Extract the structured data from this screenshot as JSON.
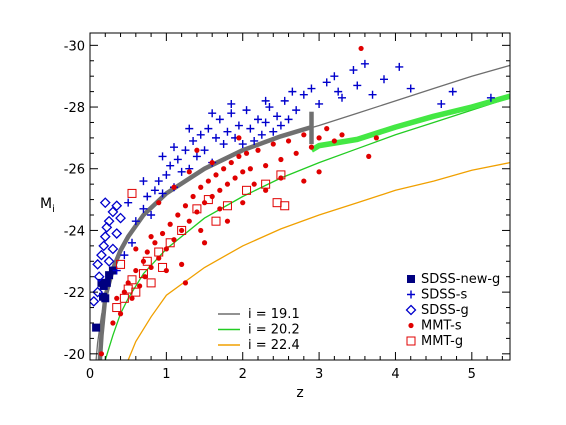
{
  "chart_data": {
    "type": "scatter",
    "title": "",
    "xlabel": "z",
    "ylabel_main": "M",
    "ylabel_sub": "i",
    "xlim": [
      0,
      5.5
    ],
    "ylim": [
      -19.8,
      -30.4
    ],
    "y_inverted": true,
    "x_ticks": [
      0,
      1,
      2,
      3,
      4,
      5
    ],
    "x_tick_labels": [
      "0",
      "1",
      "2",
      "3",
      "4",
      "5"
    ],
    "y_ticks": [
      -20,
      -22,
      -24,
      -26,
      -28,
      -30
    ],
    "y_tick_labels": [
      "-20",
      "-22",
      "-24",
      "-26",
      "-28",
      "-30"
    ],
    "grid": false,
    "colors": {
      "line_19_1": "#6e6e6e",
      "line_20_2": "#22cc22",
      "line_22_4": "#f0a000",
      "selection_gray": "#707070",
      "selection_green": "#44e844",
      "sdss_blue": "#0000cc",
      "sdss_new": "#000080",
      "mmt_red": "#e00000"
    },
    "line_legend": [
      {
        "label": "i = 19.1",
        "color": "#6e6e6e"
      },
      {
        "label": "i = 20.2",
        "color": "#22cc22"
      },
      {
        "label": "i = 22.4",
        "color": "#f0a000"
      }
    ],
    "marker_legend": [
      {
        "label": "SDSS-new-g",
        "marker": "filled-square",
        "color": "#000080"
      },
      {
        "label": "SDSS-s",
        "marker": "plus",
        "color": "#0000cc"
      },
      {
        "label": "SDSS-g",
        "marker": "open-diamond",
        "color": "#0000cc"
      },
      {
        "label": "MMT-s",
        "marker": "filled-circle",
        "color": "#e00000"
      },
      {
        "label": "MMT-g",
        "marker": "open-square",
        "color": "#e00000"
      }
    ],
    "curves": [
      {
        "label": "i = 19.1",
        "color": "#6e6e6e",
        "points": [
          [
            0.08,
            -19.8
          ],
          [
            0.1,
            -20.35
          ],
          [
            0.15,
            -21.25
          ],
          [
            0.2,
            -21.85
          ],
          [
            0.3,
            -22.75
          ],
          [
            0.4,
            -23.35
          ],
          [
            0.5,
            -23.8
          ],
          [
            0.7,
            -24.5
          ],
          [
            1.0,
            -25.2
          ],
          [
            1.5,
            -26.0
          ],
          [
            2.0,
            -26.6
          ],
          [
            2.5,
            -27.05
          ],
          [
            3.0,
            -27.4
          ],
          [
            3.5,
            -27.8
          ],
          [
            4.0,
            -28.2
          ],
          [
            4.5,
            -28.6
          ],
          [
            5.0,
            -29.0
          ],
          [
            5.5,
            -29.35
          ]
        ]
      },
      {
        "label": "i = 20.2",
        "color": "#22cc22",
        "points": [
          [
            0.2,
            -19.8
          ],
          [
            0.3,
            -20.6
          ],
          [
            0.4,
            -21.3
          ],
          [
            0.5,
            -21.8
          ],
          [
            0.7,
            -22.6
          ],
          [
            1.0,
            -23.4
          ],
          [
            1.5,
            -24.4
          ],
          [
            2.0,
            -25.1
          ],
          [
            2.5,
            -25.7
          ],
          [
            3.0,
            -26.2
          ],
          [
            3.5,
            -26.65
          ],
          [
            4.0,
            -27.1
          ],
          [
            4.5,
            -27.5
          ],
          [
            5.0,
            -27.9
          ],
          [
            5.5,
            -28.3
          ]
        ]
      },
      {
        "label": "i = 22.4",
        "color": "#f0a000",
        "points": [
          [
            0.5,
            -19.8
          ],
          [
            0.6,
            -20.4
          ],
          [
            0.8,
            -21.2
          ],
          [
            1.0,
            -21.9
          ],
          [
            1.5,
            -22.8
          ],
          [
            2.0,
            -23.5
          ],
          [
            2.5,
            -24.05
          ],
          [
            3.0,
            -24.5
          ],
          [
            3.5,
            -24.9
          ],
          [
            4.0,
            -25.3
          ],
          [
            4.5,
            -25.6
          ],
          [
            5.0,
            -25.95
          ],
          [
            5.5,
            -26.2
          ]
        ]
      }
    ],
    "selection_limit": {
      "gray_segment": [
        [
          0.13,
          -19.8
        ],
        [
          0.15,
          -20.6
        ],
        [
          0.2,
          -21.85
        ],
        [
          0.3,
          -22.75
        ],
        [
          0.4,
          -23.35
        ],
        [
          0.5,
          -23.8
        ],
        [
          0.7,
          -24.5
        ],
        [
          1.0,
          -25.2
        ],
        [
          1.5,
          -26.0
        ],
        [
          2.0,
          -26.6
        ],
        [
          2.5,
          -27.05
        ],
        [
          2.9,
          -27.35
        ]
      ],
      "gray_vertical": [
        [
          2.9,
          -27.85
        ],
        [
          2.9,
          -26.8
        ]
      ],
      "green_segment": [
        [
          2.9,
          -26.6
        ],
        [
          3.0,
          -26.75
        ],
        [
          3.5,
          -26.95
        ],
        [
          4.0,
          -27.35
        ],
        [
          4.5,
          -27.7
        ],
        [
          5.0,
          -28.0
        ],
        [
          5.5,
          -28.35
        ]
      ]
    },
    "series": [
      {
        "name": "SDSS-new-g",
        "marker": "filled-square",
        "color": "#000080",
        "points": [
          [
            0.08,
            -20.85
          ],
          [
            0.15,
            -22.3
          ],
          [
            0.18,
            -22.2
          ],
          [
            0.22,
            -22.3
          ],
          [
            0.25,
            -22.55
          ],
          [
            0.2,
            -21.8
          ],
          [
            0.17,
            -21.85
          ],
          [
            0.3,
            -22.7
          ]
        ]
      },
      {
        "name": "SDSS-s",
        "marker": "plus",
        "color": "#0000cc",
        "points": [
          [
            0.35,
            -22.7
          ],
          [
            0.45,
            -23.2
          ],
          [
            0.55,
            -23.6
          ],
          [
            0.6,
            -24.3
          ],
          [
            0.7,
            -24.7
          ],
          [
            0.75,
            -25.1
          ],
          [
            0.8,
            -24.5
          ],
          [
            0.85,
            -25.3
          ],
          [
            0.9,
            -25.6
          ],
          [
            0.95,
            -25.2
          ],
          [
            1.0,
            -25.8
          ],
          [
            1.05,
            -26.1
          ],
          [
            1.1,
            -25.4
          ],
          [
            1.15,
            -26.3
          ],
          [
            1.2,
            -25.9
          ],
          [
            1.25,
            -26.6
          ],
          [
            1.3,
            -26.0
          ],
          [
            1.35,
            -26.9
          ],
          [
            1.4,
            -26.4
          ],
          [
            1.45,
            -27.1
          ],
          [
            1.5,
            -26.6
          ],
          [
            1.55,
            -27.3
          ],
          [
            1.6,
            -26.2
          ],
          [
            1.65,
            -27.0
          ],
          [
            1.7,
            -27.6
          ],
          [
            1.75,
            -26.8
          ],
          [
            1.8,
            -27.2
          ],
          [
            1.85,
            -27.8
          ],
          [
            1.9,
            -27.0
          ],
          [
            1.95,
            -27.4
          ],
          [
            2.0,
            -26.8
          ],
          [
            2.05,
            -27.9
          ],
          [
            2.1,
            -27.3
          ],
          [
            2.15,
            -26.9
          ],
          [
            2.2,
            -27.6
          ],
          [
            2.25,
            -27.1
          ],
          [
            2.3,
            -27.5
          ],
          [
            2.35,
            -28.0
          ],
          [
            2.4,
            -27.2
          ],
          [
            2.45,
            -27.7
          ],
          [
            2.5,
            -27.4
          ],
          [
            2.55,
            -28.2
          ],
          [
            2.6,
            -27.6
          ],
          [
            2.7,
            -27.9
          ],
          [
            2.8,
            -28.4
          ],
          [
            2.9,
            -28.6
          ],
          [
            3.0,
            -28.1
          ],
          [
            3.1,
            -28.8
          ],
          [
            3.2,
            -29.0
          ],
          [
            3.25,
            -28.5
          ],
          [
            3.3,
            -28.3
          ],
          [
            3.45,
            -29.2
          ],
          [
            3.5,
            -28.7
          ],
          [
            3.6,
            -29.4
          ],
          [
            3.7,
            -28.4
          ],
          [
            3.85,
            -28.9
          ],
          [
            4.05,
            -29.3
          ],
          [
            4.2,
            -28.6
          ],
          [
            4.6,
            -28.1
          ],
          [
            4.75,
            -28.5
          ],
          [
            5.25,
            -28.3
          ],
          [
            1.6,
            -27.8
          ],
          [
            1.3,
            -27.3
          ],
          [
            1.1,
            -26.7
          ],
          [
            0.95,
            -26.4
          ],
          [
            0.7,
            -25.6
          ],
          [
            0.5,
            -24.9
          ],
          [
            1.85,
            -28.1
          ],
          [
            2.3,
            -28.2
          ],
          [
            2.65,
            -28.5
          ]
        ]
      },
      {
        "name": "SDSS-g",
        "marker": "open-diamond",
        "color": "#0000cc",
        "points": [
          [
            0.05,
            -21.7
          ],
          [
            0.1,
            -22.0
          ],
          [
            0.12,
            -22.5
          ],
          [
            0.1,
            -22.9
          ],
          [
            0.15,
            -23.2
          ],
          [
            0.18,
            -23.5
          ],
          [
            0.2,
            -23.8
          ],
          [
            0.22,
            -24.1
          ],
          [
            0.25,
            -24.3
          ],
          [
            0.3,
            -24.6
          ],
          [
            0.25,
            -23.0
          ],
          [
            0.3,
            -23.4
          ],
          [
            0.35,
            -23.9
          ],
          [
            0.4,
            -24.4
          ],
          [
            0.2,
            -24.9
          ],
          [
            0.35,
            -24.8
          ]
        ]
      },
      {
        "name": "MMT-s",
        "marker": "filled-circle",
        "color": "#e00000",
        "points": [
          [
            0.15,
            -20.0
          ],
          [
            0.3,
            -21.0
          ],
          [
            0.35,
            -21.8
          ],
          [
            0.4,
            -21.3
          ],
          [
            0.45,
            -22.0
          ],
          [
            0.5,
            -22.3
          ],
          [
            0.55,
            -21.8
          ],
          [
            0.6,
            -22.7
          ],
          [
            0.65,
            -22.2
          ],
          [
            0.7,
            -23.0
          ],
          [
            0.72,
            -22.5
          ],
          [
            0.75,
            -23.3
          ],
          [
            0.8,
            -22.8
          ],
          [
            0.85,
            -23.6
          ],
          [
            0.9,
            -23.1
          ],
          [
            0.95,
            -23.9
          ],
          [
            1.0,
            -23.4
          ],
          [
            1.05,
            -24.2
          ],
          [
            1.1,
            -23.7
          ],
          [
            1.15,
            -24.5
          ],
          [
            1.2,
            -24.0
          ],
          [
            1.25,
            -24.8
          ],
          [
            1.3,
            -24.3
          ],
          [
            1.35,
            -25.1
          ],
          [
            1.4,
            -24.6
          ],
          [
            1.45,
            -25.4
          ],
          [
            1.5,
            -24.9
          ],
          [
            1.55,
            -25.6
          ],
          [
            1.6,
            -25.1
          ],
          [
            1.65,
            -25.8
          ],
          [
            1.7,
            -25.3
          ],
          [
            1.75,
            -26.0
          ],
          [
            1.8,
            -25.5
          ],
          [
            1.85,
            -26.2
          ],
          [
            1.9,
            -25.7
          ],
          [
            1.95,
            -26.4
          ],
          [
            2.0,
            -25.9
          ],
          [
            2.05,
            -26.5
          ],
          [
            2.1,
            -26.0
          ],
          [
            2.2,
            -26.6
          ],
          [
            2.3,
            -26.1
          ],
          [
            2.4,
            -26.8
          ],
          [
            2.5,
            -26.3
          ],
          [
            2.6,
            -26.9
          ],
          [
            2.7,
            -26.5
          ],
          [
            2.8,
            -27.1
          ],
          [
            2.9,
            -26.7
          ],
          [
            3.0,
            -27.0
          ],
          [
            3.1,
            -27.3
          ],
          [
            3.2,
            -26.9
          ],
          [
            3.3,
            -27.1
          ],
          [
            3.55,
            -29.9
          ],
          [
            3.65,
            -26.4
          ],
          [
            3.75,
            -27.0
          ],
          [
            1.2,
            -22.9
          ],
          [
            1.5,
            -23.6
          ],
          [
            1.8,
            -24.3
          ],
          [
            1.0,
            -22.7
          ],
          [
            0.8,
            -23.8
          ],
          [
            1.3,
            -25.9
          ],
          [
            1.6,
            -26.2
          ],
          [
            2.0,
            -24.9
          ],
          [
            2.3,
            -25.3
          ],
          [
            2.5,
            -25.7
          ],
          [
            2.8,
            -25.6
          ],
          [
            3.0,
            -25.9
          ],
          [
            1.25,
            -22.3
          ],
          [
            0.6,
            -23.4
          ],
          [
            1.45,
            -24.0
          ],
          [
            1.7,
            -24.7
          ],
          [
            2.15,
            -25.5
          ],
          [
            0.9,
            -24.9
          ],
          [
            1.1,
            -25.4
          ],
          [
            1.4,
            -26.6
          ],
          [
            1.95,
            -27.0
          ]
        ]
      },
      {
        "name": "MMT-g",
        "marker": "open-square",
        "color": "#e00000",
        "points": [
          [
            0.35,
            -21.5
          ],
          [
            0.45,
            -21.8
          ],
          [
            0.5,
            -22.1
          ],
          [
            0.55,
            -22.4
          ],
          [
            0.6,
            -22.0
          ],
          [
            0.7,
            -22.6
          ],
          [
            0.75,
            -23.0
          ],
          [
            0.8,
            -22.3
          ],
          [
            0.9,
            -23.3
          ],
          [
            0.95,
            -22.8
          ],
          [
            1.05,
            -23.6
          ],
          [
            1.2,
            -24.0
          ],
          [
            1.4,
            -24.7
          ],
          [
            1.55,
            -25.0
          ],
          [
            1.65,
            -24.3
          ],
          [
            1.8,
            -24.8
          ],
          [
            2.05,
            -25.3
          ],
          [
            2.3,
            -25.5
          ],
          [
            2.45,
            -24.9
          ],
          [
            2.5,
            -25.8
          ],
          [
            2.55,
            -24.8
          ],
          [
            0.55,
            -25.2
          ],
          [
            0.4,
            -22.9
          ]
        ]
      }
    ]
  }
}
